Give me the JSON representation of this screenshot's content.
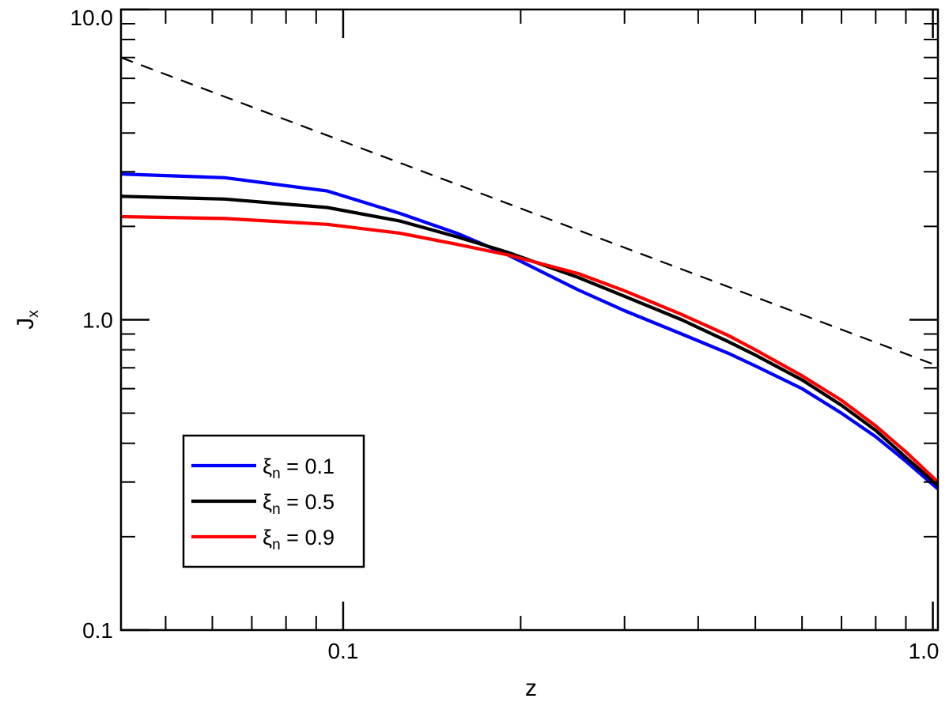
{
  "chart_data": {
    "type": "line",
    "x_scale": "log",
    "y_scale": "log",
    "xlabel": "z",
    "ylabel": "J",
    "ylabel_sub": "x",
    "xlim": [
      0.042,
      1.02
    ],
    "ylim": [
      0.1,
      10.0
    ],
    "x_tick_labels": [
      {
        "value": 0.1,
        "label": "0.1"
      },
      {
        "value": 1.0,
        "label": "1.0"
      }
    ],
    "y_tick_labels": [
      {
        "value": 0.1,
        "label": "0.1"
      },
      {
        "value": 1.0,
        "label": "1.0"
      },
      {
        "value": 10.0,
        "label": "10.0"
      }
    ],
    "grid": false,
    "legend_position": "bottom-left",
    "series": [
      {
        "name_symbol": "ξ",
        "name_sub": "n",
        "name_rest": " = 0.1",
        "color": "#0000ff",
        "style": "solid",
        "x": [
          0.042,
          0.063,
          0.094,
          0.125,
          0.156,
          0.19,
          0.25,
          0.3,
          0.375,
          0.45,
          0.5,
          0.6,
          0.7,
          0.8,
          0.9,
          1.02
        ],
        "y": [
          2.95,
          2.87,
          2.6,
          2.2,
          1.9,
          1.62,
          1.25,
          1.07,
          0.9,
          0.78,
          0.71,
          0.6,
          0.5,
          0.42,
          0.35,
          0.285
        ]
      },
      {
        "name_symbol": "ξ",
        "name_sub": "n",
        "name_rest": " = 0.5",
        "color": "#000000",
        "style": "solid",
        "x": [
          0.042,
          0.063,
          0.094,
          0.125,
          0.156,
          0.19,
          0.25,
          0.3,
          0.375,
          0.45,
          0.5,
          0.6,
          0.7,
          0.8,
          0.9,
          1.02
        ],
        "y": [
          2.5,
          2.45,
          2.3,
          2.08,
          1.85,
          1.65,
          1.37,
          1.19,
          1.0,
          0.85,
          0.77,
          0.64,
          0.53,
          0.44,
          0.36,
          0.292
        ]
      },
      {
        "name_symbol": "ξ",
        "name_sub": "n",
        "name_rest": " = 0.9",
        "color": "#ff0000",
        "style": "solid",
        "x": [
          0.042,
          0.063,
          0.094,
          0.125,
          0.156,
          0.19,
          0.25,
          0.3,
          0.375,
          0.45,
          0.5,
          0.6,
          0.7,
          0.8,
          0.9,
          1.02
        ],
        "y": [
          2.15,
          2.12,
          2.03,
          1.9,
          1.75,
          1.62,
          1.41,
          1.24,
          1.04,
          0.89,
          0.8,
          0.66,
          0.55,
          0.455,
          0.375,
          0.3
        ]
      },
      {
        "color": "#000000",
        "style": "dashed",
        "x": [
          0.042,
          1.02
        ],
        "y": [
          7.0,
          0.71
        ]
      }
    ]
  }
}
